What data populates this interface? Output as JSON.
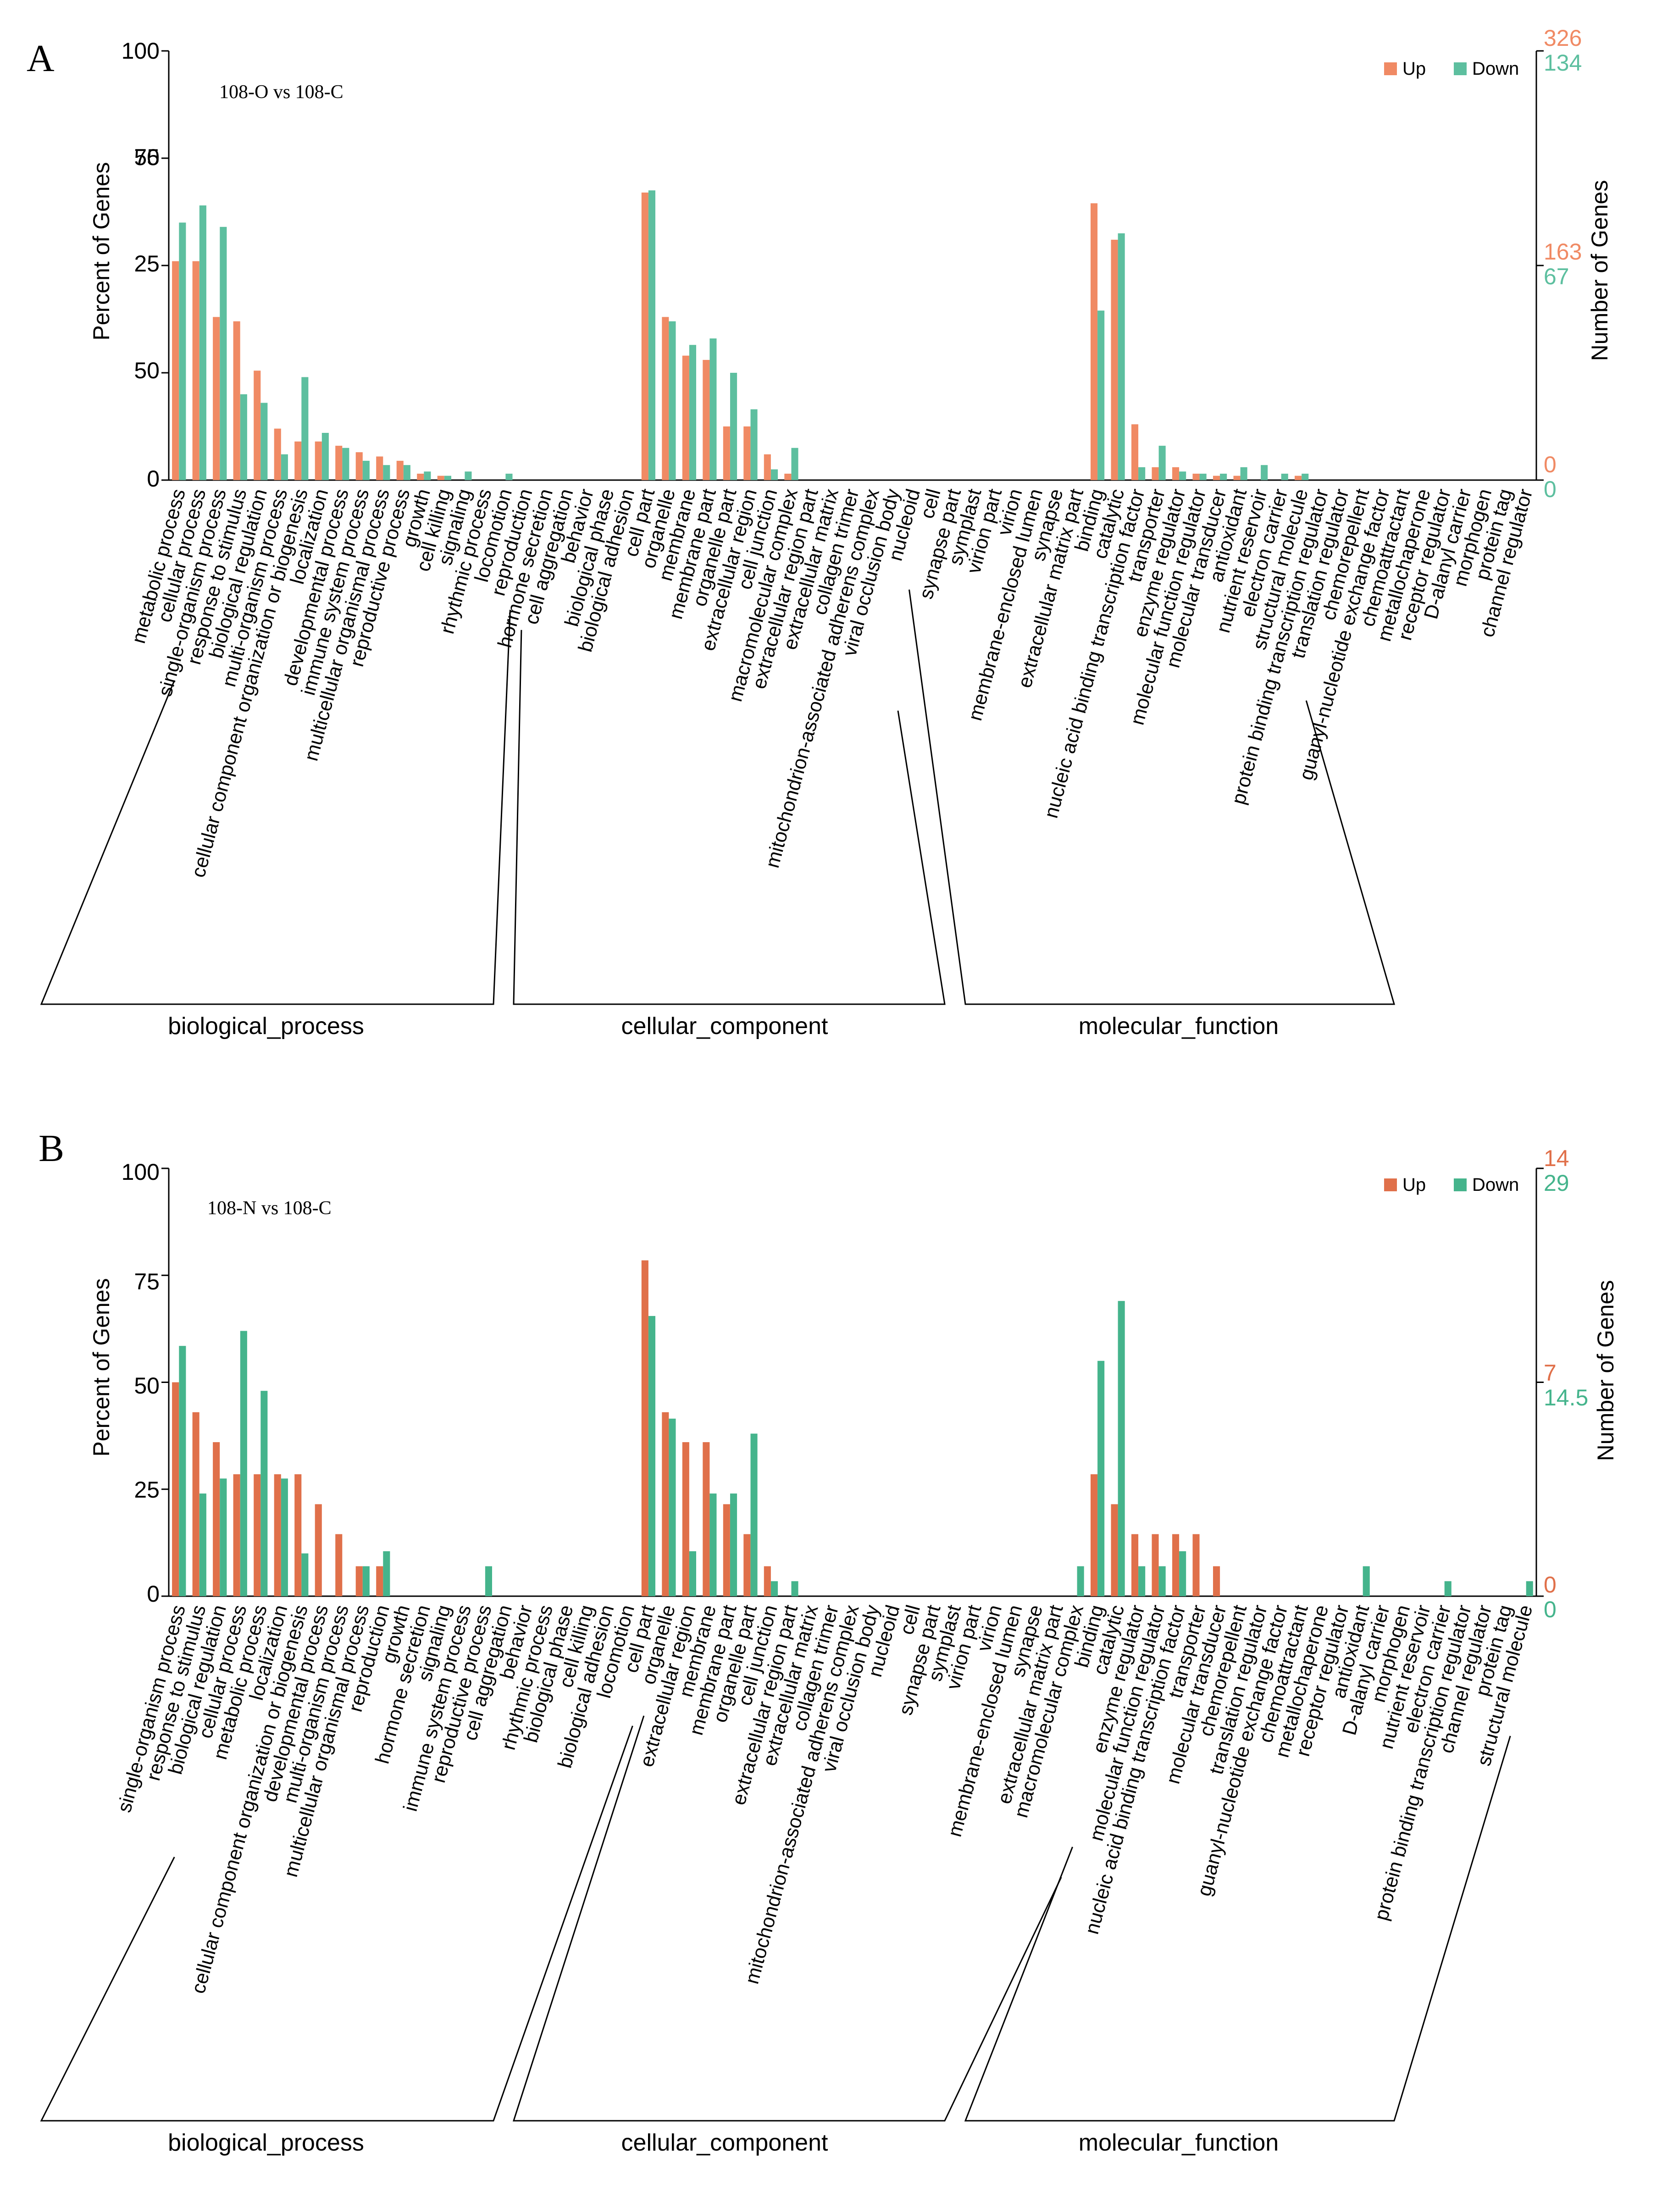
{
  "figure": {
    "panels": [
      {
        "letter": "A",
        "comparison": "108-O vs 108-C",
        "legend": {
          "up": "Up",
          "down": "Down"
        },
        "colors": {
          "up": "#f08a64",
          "down": "#5dbf9f"
        },
        "y_left": {
          "label": "Percent of Genes",
          "ticks": [
            "0",
            "25",
            "50",
            "75",
            "100"
          ]
        },
        "y_right": {
          "label": "Number of Genes",
          "up_ticks": [
            "0",
            "163",
            "326"
          ],
          "down_ticks": [
            "0",
            "67",
            "134"
          ]
        }
      },
      {
        "letter": "B",
        "comparison": "108-N vs 108-C",
        "legend": {
          "up": "Up",
          "down": "Down"
        },
        "colors": {
          "up": "#e0704a",
          "down": "#45b48c"
        },
        "y_left": {
          "label": "Percent of Genes",
          "ticks": [
            "0",
            "25",
            "50",
            "75",
            "100"
          ]
        },
        "y_right": {
          "label": "Number of Genes",
          "up_ticks": [
            "0",
            "7",
            "14"
          ],
          "down_ticks": [
            "0",
            "14.5",
            "29"
          ]
        }
      }
    ]
  },
  "chart_data": [
    {
      "type": "bar",
      "title": "108-O vs 108-C",
      "ylabel": "Percent of Genes",
      "y2label": "Number of Genes",
      "ylim": [
        0,
        100
      ],
      "groups": [
        {
          "name": "biological_process",
          "count": 17
        },
        {
          "name": "cellular_component",
          "count": 19
        },
        {
          "name": "molecular_function",
          "count": 20
        }
      ],
      "categories": [
        "metabolic process",
        "cellular process",
        "single-organism process",
        "response to stimulus",
        "biological regulation",
        "multi-organism process",
        "cellular component organization or biogenesis",
        "localization",
        "developmental process",
        "immune system process",
        "multicellular organismal process",
        "reproductive process",
        "growth",
        "cell killing",
        "signaling",
        "rhythmic process",
        "locomotion",
        "reproduction",
        "hormone secretion",
        "cell aggregation",
        "behavior",
        "biological phase",
        "biological adhesion",
        "cell part",
        "organelle",
        "membrane",
        "membrane part",
        "organelle part",
        "extracellular region",
        "cell junction",
        "macromolecular complex",
        "extracellular region part",
        "extracellular matrix",
        "collagen trimer",
        "mitochondrion-associated adherens complex",
        "viral occlusion body",
        "nucleoid",
        "cell",
        "synapse part",
        "symplast",
        "virion part",
        "virion",
        "membrane-enclosed lumen",
        "synapse",
        "extracellular matrix part",
        "binding",
        "catalytic",
        "nucleic acid binding transcription factor",
        "transporter",
        "enzyme regulator",
        "molecular function regulator",
        "molecular transducer",
        "antioxidant",
        "nutrient reservoir",
        "electron carrier",
        "structural molecule",
        "protein binding transcription regulator",
        "translation regulator",
        "chemorepellent",
        "guanyl-nucleotide exchange factor",
        "chemoattractant",
        "metallochaperone",
        "receptor regulator",
        "D-alanyl carrier",
        "morphogen",
        "protein tag",
        "channel regulator"
      ],
      "series": [
        {
          "name": "Up",
          "values": [
            51,
            51,
            38,
            37,
            25.5,
            12,
            9,
            9,
            8,
            6.5,
            5.5,
            4.5,
            1.5,
            1,
            0,
            0,
            0,
            0,
            0,
            0,
            0,
            0,
            0,
            67,
            38,
            29,
            28,
            12.5,
            12.5,
            6,
            1.5,
            0,
            0,
            0,
            0,
            0,
            0,
            0,
            0,
            0,
            0,
            0,
            0,
            0,
            0,
            64.5,
            56,
            13,
            3,
            3,
            1.5,
            1,
            1,
            0,
            0,
            1,
            0,
            0,
            0,
            0,
            0,
            0,
            0,
            0,
            0,
            0,
            0
          ]
        },
        {
          "name": "Down",
          "values": [
            60,
            64,
            59,
            20,
            18,
            6,
            24,
            11,
            7.5,
            4.5,
            3.5,
            3.5,
            2,
            1,
            2,
            0,
            1.5,
            0,
            0,
            0,
            0,
            0,
            0,
            67.5,
            37,
            31.5,
            33,
            25,
            16.5,
            2.5,
            7.5,
            0,
            0,
            0,
            0,
            0,
            0,
            0,
            0,
            0,
            0,
            0,
            0,
            0,
            0,
            39.5,
            57.5,
            3,
            8,
            2,
            1.5,
            1.5,
            3,
            3.5,
            1.5,
            1.5,
            0,
            0,
            0,
            0,
            0,
            0,
            0,
            0,
            0,
            0,
            0
          ]
        }
      ]
    },
    {
      "type": "bar",
      "title": "108-N vs 108-C",
      "ylabel": "Percent of Genes",
      "y2label": "Number of Genes",
      "ylim": [
        0,
        100
      ],
      "groups": [
        {
          "name": "biological_process",
          "count": 23
        },
        {
          "name": "cellular_component",
          "count": 21
        },
        {
          "name": "molecular_function",
          "count": 22
        }
      ],
      "categories": [
        "single-organism process",
        "response to stimulus",
        "biological regulation",
        "cellular process",
        "metabolic process",
        "localization",
        "cellular component organization or biogenesis",
        "developmental process",
        "multi-organism process",
        "multicellular organismal process",
        "reproduction",
        "growth",
        "hormone secretion",
        "signaling",
        "immune system process",
        "reproductive process",
        "cell aggregation",
        "behavior",
        "rhythmic process",
        "biological phase",
        "cell killing",
        "biological adhesion",
        "locomotion",
        "cell part",
        "organelle",
        "extracellular region",
        "membrane",
        "membrane part",
        "organelle part",
        "cell junction",
        "extracellular region part",
        "extracellular matrix",
        "collagen trimer",
        "mitochondrion-associated adherens complex",
        "viral occlusion body",
        "nucleoid",
        "cell",
        "synapse part",
        "symplast",
        "virion part",
        "virion",
        "membrane-enclosed lumen",
        "synapse",
        "extracellular matrix part",
        "macromolecular complex",
        "binding",
        "catalytic",
        "enzyme regulator",
        "molecular function regulator",
        "nucleic acid binding transcription factor",
        "transporter",
        "molecular transducer",
        "chemorepellent",
        "translation regulator",
        "guanyl-nucleotide exchange factor",
        "chemoattractant",
        "metallochaperone",
        "receptor regulator",
        "antioxidant",
        "D-alanyl carrier",
        "morphogen",
        "nutrient reservoir",
        "electron carrier",
        "protein binding transcription regulator",
        "channel regulator",
        "protein tag",
        "structural molecule"
      ],
      "series": [
        {
          "name": "Up",
          "values": [
            50,
            43,
            36,
            28.5,
            28.5,
            28.5,
            28.5,
            21.5,
            14.5,
            7,
            7,
            0,
            0,
            0,
            0,
            0,
            0,
            0,
            0,
            0,
            0,
            0,
            0,
            78.5,
            43,
            36,
            36,
            21.5,
            14.5,
            7,
            0,
            0,
            0,
            0,
            0,
            0,
            0,
            0,
            0,
            0,
            0,
            0,
            0,
            0,
            0,
            28.5,
            21.5,
            14.5,
            14.5,
            14.5,
            14.5,
            7,
            0,
            0,
            0,
            0,
            0,
            0,
            0,
            0,
            0,
            0,
            0,
            0,
            0,
            0,
            0
          ]
        },
        {
          "name": "Down",
          "values": [
            58.5,
            24,
            27.5,
            62,
            48,
            27.5,
            10,
            0,
            0,
            7,
            10.5,
            0,
            0,
            0,
            0,
            7,
            0,
            0,
            0,
            0,
            0,
            0,
            0,
            65.5,
            41.5,
            10.5,
            24,
            24,
            38,
            3.5,
            3.5,
            0,
            0,
            0,
            0,
            0,
            0,
            0,
            0,
            0,
            0,
            0,
            0,
            0,
            7,
            55,
            69,
            7,
            7,
            10.5,
            0,
            0,
            0,
            0,
            0,
            0,
            0,
            0,
            7,
            0,
            0,
            0,
            3.5,
            0,
            0,
            0,
            3.5
          ]
        }
      ]
    }
  ]
}
